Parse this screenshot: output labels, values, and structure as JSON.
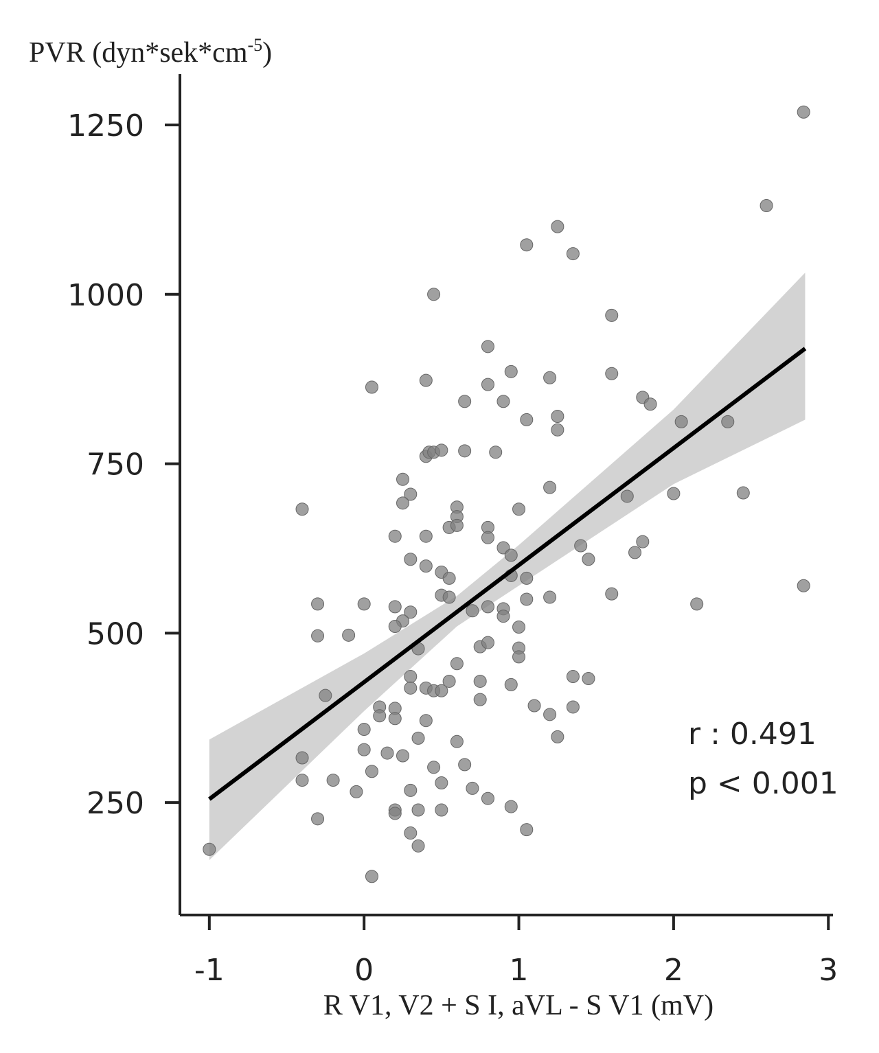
{
  "chart_data": {
    "type": "scatter",
    "y_label": {
      "text": "PVR (dyn*sek*cm",
      "superscript": "-5",
      "suffix": ")"
    },
    "x_label": "R V1, V2 + S I, aVL - S V1 (mV)",
    "xlim": [
      -1.19,
      3.03
    ],
    "ylim": [
      84,
      1325
    ],
    "xticks": [
      -1,
      0,
      1,
      2,
      3
    ],
    "yticks": [
      250,
      500,
      750,
      1000,
      1250
    ],
    "color": "#808080",
    "x": [
      -1.0,
      0.05,
      2.84,
      2.6,
      1.25,
      1.05,
      1.35,
      0.45,
      1.6,
      0.8,
      0.05,
      0.4,
      0.8,
      0.95,
      1.2,
      1.6,
      0.65,
      0.9,
      1.8,
      1.85,
      1.05,
      1.25,
      1.25,
      2.05,
      2.35,
      0.4,
      0.42,
      0.45,
      0.5,
      0.65,
      0.85,
      0.25,
      0.3,
      0.25,
      -0.4,
      0.6,
      0.6,
      1.2,
      1.7,
      2.0,
      2.45,
      1.0,
      0.2,
      0.4,
      0.55,
      0.6,
      0.8,
      0.8,
      0.9,
      0.95,
      1.4,
      1.45,
      1.8,
      1.75,
      0.3,
      0.4,
      0.5,
      0.55,
      0.95,
      1.05,
      0.5,
      0.55,
      1.05,
      1.2,
      1.6,
      2.84,
      -0.3,
      0,
      0.2,
      0.3,
      0.25,
      0.2,
      0.7,
      0.8,
      0.9,
      0.9,
      1.0,
      2.15,
      -0.3,
      -0.1,
      0.35,
      0.75,
      0.8,
      1.0,
      1.0,
      0.6,
      0.3,
      0.3,
      0.4,
      0.45,
      0.5,
      0.55,
      0.75,
      0.95,
      1.35,
      1.45,
      -0.25,
      0.75,
      0.1,
      0.1,
      0.2,
      0.2,
      0.4,
      1.1,
      1.2,
      1.35,
      0,
      0.35,
      0.6,
      1.25,
      0,
      0.15,
      0.25,
      -0.4,
      0.45,
      0.65,
      0.05,
      -0.4,
      -0.2,
      0.5,
      0.7,
      -0.05,
      0.3,
      0.8,
      0.2,
      0.2,
      0.35,
      0.5,
      0.95,
      -0.3,
      0.3,
      1.05,
      0.35
    ],
    "y": [
      181,
      141,
      1269,
      1131,
      1100,
      1073,
      1060,
      1000,
      969,
      923,
      863,
      873,
      867,
      886,
      877,
      883,
      842,
      842,
      848,
      838,
      815,
      820,
      800,
      812,
      812,
      761,
      767,
      767,
      770,
      769,
      767,
      727,
      705,
      692,
      683,
      686,
      672,
      715,
      702,
      706,
      707,
      683,
      643,
      643,
      656,
      659,
      656,
      641,
      626,
      615,
      629,
      609,
      635,
      619,
      609,
      599,
      590,
      581,
      585,
      581,
      556,
      553,
      550,
      553,
      558,
      570,
      543,
      543,
      539,
      531,
      518,
      510,
      533,
      539,
      536,
      525,
      509,
      543,
      496,
      497,
      477,
      480,
      486,
      478,
      465,
      455,
      436,
      419,
      419,
      415,
      415,
      429,
      429,
      424,
      436,
      433,
      408,
      402,
      391,
      378,
      389,
      374,
      371,
      393,
      380,
      391,
      358,
      345,
      340,
      347,
      328,
      323,
      319,
      316,
      302,
      306,
      296,
      283,
      283,
      279,
      271,
      266,
      268,
      256,
      239,
      234,
      239,
      239,
      244,
      226,
      205,
      210,
      186
    ],
    "fit": {
      "x": [
        -1,
        2.85
      ],
      "y": [
        255,
        920
      ]
    },
    "band": {
      "x": [
        -1,
        0,
        0.6,
        1,
        2,
        2.85
      ],
      "lower": [
        165,
        385,
        510,
        570,
        720,
        815
      ],
      "upper": [
        343,
        470,
        555,
        630,
        830,
        1032
      ]
    },
    "annotations": [
      "r : 0.491",
      "p < 0.001"
    ]
  }
}
